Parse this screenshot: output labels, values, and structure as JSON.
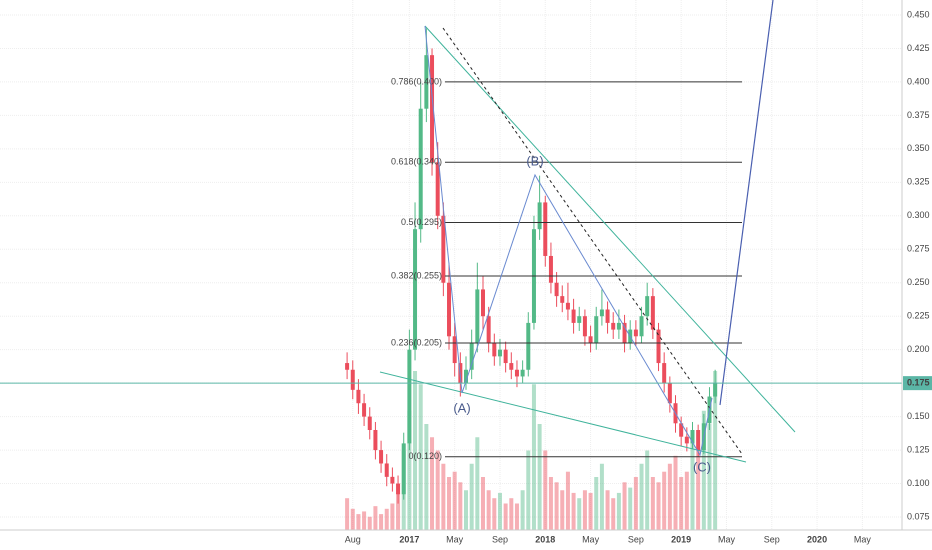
{
  "chart_data": {
    "type": "candlestick",
    "x": [
      6.5,
      7,
      7.5,
      8,
      8.5,
      9,
      9.5,
      10,
      10.5,
      11,
      11.5,
      12,
      12.5,
      13,
      13.5,
      14,
      14.5,
      15,
      15.5,
      16,
      16.5,
      17,
      17.5,
      18,
      18.5,
      19,
      19.5,
      20,
      20.5,
      21,
      21.5,
      22,
      22.5,
      23,
      23.5,
      24,
      24.5,
      25,
      25.5,
      26,
      26.5,
      27,
      27.5,
      28,
      28.5,
      29,
      29.5,
      30,
      30.5,
      31,
      31.5,
      32,
      32.5,
      33,
      33.5,
      34,
      34.5,
      35,
      35.5,
      36,
      36.5,
      37,
      37.5,
      38,
      38.5,
      39
    ],
    "open": [
      0.19,
      0.185,
      0.17,
      0.16,
      0.15,
      0.14,
      0.125,
      0.115,
      0.105,
      0.1,
      0.092,
      0.13,
      0.2,
      0.29,
      0.38,
      0.42,
      0.34,
      0.3,
      0.25,
      0.21,
      0.19,
      0.175,
      0.185,
      0.205,
      0.245,
      0.225,
      0.205,
      0.195,
      0.2,
      0.19,
      0.185,
      0.18,
      0.185,
      0.22,
      0.29,
      0.31,
      0.27,
      0.25,
      0.24,
      0.235,
      0.23,
      0.22,
      0.225,
      0.21,
      0.205,
      0.225,
      0.23,
      0.22,
      0.215,
      0.22,
      0.205,
      0.215,
      0.21,
      0.225,
      0.24,
      0.215,
      0.19,
      0.175,
      0.16,
      0.145,
      0.135,
      0.13,
      0.14,
      0.125,
      0.145,
      0.165
    ],
    "high": [
      0.198,
      0.192,
      0.178,
      0.167,
      0.157,
      0.146,
      0.132,
      0.122,
      0.112,
      0.106,
      0.138,
      0.215,
      0.31,
      0.4,
      0.44,
      0.425,
      0.355,
      0.31,
      0.265,
      0.22,
      0.198,
      0.195,
      0.215,
      0.265,
      0.255,
      0.232,
      0.212,
      0.208,
      0.206,
      0.198,
      0.192,
      0.192,
      0.228,
      0.3,
      0.33,
      0.315,
      0.28,
      0.258,
      0.248,
      0.25,
      0.238,
      0.232,
      0.23,
      0.218,
      0.232,
      0.245,
      0.236,
      0.228,
      0.23,
      0.226,
      0.222,
      0.222,
      0.232,
      0.25,
      0.246,
      0.22,
      0.198,
      0.18,
      0.166,
      0.15,
      0.142,
      0.146,
      0.144,
      0.152,
      0.172,
      0.185
    ],
    "low": [
      0.178,
      0.163,
      0.152,
      0.143,
      0.133,
      0.118,
      0.108,
      0.098,
      0.094,
      0.085,
      0.088,
      0.125,
      0.192,
      0.28,
      0.37,
      0.33,
      0.29,
      0.24,
      0.2,
      0.18,
      0.165,
      0.17,
      0.178,
      0.198,
      0.215,
      0.198,
      0.188,
      0.188,
      0.183,
      0.178,
      0.172,
      0.175,
      0.18,
      0.215,
      0.282,
      0.262,
      0.242,
      0.232,
      0.228,
      0.222,
      0.212,
      0.214,
      0.203,
      0.198,
      0.2,
      0.218,
      0.212,
      0.208,
      0.208,
      0.198,
      0.2,
      0.203,
      0.205,
      0.218,
      0.208,
      0.184,
      0.168,
      0.153,
      0.138,
      0.128,
      0.124,
      0.126,
      0.12,
      0.122,
      0.14,
      0.16
    ],
    "close": [
      0.185,
      0.17,
      0.16,
      0.15,
      0.14,
      0.125,
      0.115,
      0.105,
      0.1,
      0.092,
      0.13,
      0.2,
      0.29,
      0.38,
      0.42,
      0.34,
      0.3,
      0.25,
      0.21,
      0.19,
      0.175,
      0.185,
      0.205,
      0.245,
      0.225,
      0.205,
      0.195,
      0.2,
      0.19,
      0.185,
      0.18,
      0.185,
      0.22,
      0.29,
      0.31,
      0.27,
      0.25,
      0.24,
      0.235,
      0.23,
      0.22,
      0.225,
      0.21,
      0.205,
      0.225,
      0.23,
      0.22,
      0.215,
      0.22,
      0.205,
      0.215,
      0.21,
      0.225,
      0.24,
      0.215,
      0.19,
      0.175,
      0.16,
      0.145,
      0.135,
      0.13,
      0.14,
      0.125,
      0.145,
      0.165,
      0.175
    ],
    "volume": [
      12,
      8,
      6,
      7,
      5,
      9,
      6,
      8,
      10,
      14,
      30,
      45,
      60,
      55,
      40,
      35,
      30,
      25,
      20,
      22,
      18,
      15,
      25,
      35,
      20,
      15,
      12,
      14,
      10,
      12,
      10,
      15,
      30,
      55,
      40,
      30,
      20,
      18,
      15,
      22,
      14,
      12,
      15,
      14,
      20,
      25,
      15,
      12,
      14,
      18,
      16,
      20,
      25,
      30,
      20,
      18,
      22,
      25,
      28,
      20,
      22,
      35,
      30,
      45,
      40,
      60
    ],
    "vlim": [
      0,
      200
    ],
    "up_color": "#53b987",
    "down_color": "#eb4d5c",
    "xlim": [
      -24.15,
      55.5
    ],
    "xticks": [
      {
        "value": 7,
        "label": "Aug"
      },
      {
        "value": 12,
        "label": "2017"
      },
      {
        "value": 16,
        "label": "May"
      },
      {
        "value": 20,
        "label": "Sep"
      },
      {
        "value": 24,
        "label": "2018"
      },
      {
        "value": 28,
        "label": "May"
      },
      {
        "value": 32,
        "label": "Sep"
      },
      {
        "value": 36,
        "label": "2019"
      },
      {
        "value": 40,
        "label": "May"
      },
      {
        "value": 44,
        "label": "Sep"
      },
      {
        "value": 48,
        "label": "2020"
      },
      {
        "value": 52,
        "label": "May"
      }
    ],
    "ylim": [
      0.0653,
      0.4612
    ],
    "yticks": [
      0.075,
      {
        "value": 0.1,
        "label": "0.100"
      },
      0.125,
      {
        "value": 0.15,
        "label": "0.150"
      },
      0.175,
      {
        "value": 0.2,
        "label": "0.200"
      },
      0.225,
      {
        "value": 0.25,
        "label": "0.250"
      },
      0.275,
      {
        "value": 0.3,
        "label": "0.300"
      },
      0.325,
      {
        "value": 0.35,
        "label": "0.350"
      },
      0.375,
      {
        "value": 0.4,
        "label": "0.400"
      },
      0.425,
      {
        "value": 0.45,
        "label": "0.450"
      }
    ],
    "grid": true,
    "last_price": {
      "value": 0.175,
      "label": "0.175",
      "color": "#5bb6a6"
    },
    "fib_levels": [
      {
        "label": "0.786(0.400)",
        "value": 0.4
      },
      {
        "label": "0.618(0.340)",
        "value": 0.34
      },
      {
        "label": "0.5(0.295)",
        "value": 0.295
      },
      {
        "label": "0.382(0.255)",
        "value": 0.255
      },
      {
        "label": "0.236(0.205)",
        "value": 0.205
      },
      {
        "label": "0(0.120)",
        "value": 0.12
      }
    ],
    "annotations": [
      "(A)",
      "(B)",
      "(C)"
    ]
  }
}
